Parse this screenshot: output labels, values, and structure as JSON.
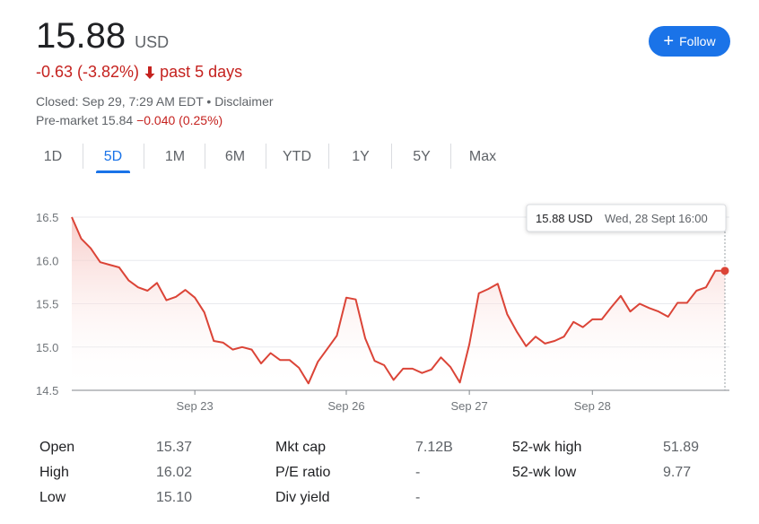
{
  "quote": {
    "price": "15.88",
    "currency": "USD",
    "change": "-0.63 (-3.82%)",
    "period": "past 5 days",
    "closed": "Closed: Sep 29, 7:29 AM EDT • Disclaimer",
    "premarket_label": "Pre-market 15.84",
    "premarket_change": "−0.040 (0.25%)"
  },
  "follow_button": {
    "label": "Follow"
  },
  "tabs": [
    {
      "label": "1D"
    },
    {
      "label": "5D"
    },
    {
      "label": "1M"
    },
    {
      "label": "6M"
    },
    {
      "label": "YTD"
    },
    {
      "label": "1Y"
    },
    {
      "label": "5Y"
    },
    {
      "label": "Max"
    }
  ],
  "active_tab": "5D",
  "colors": {
    "line": "#db4437",
    "accent": "#1a73e8",
    "negative": "#c5221f"
  },
  "tooltip": {
    "price": "15.88 USD",
    "time": "Wed, 28 Sept 16:00"
  },
  "chart_data": {
    "type": "line",
    "y_ticks": [
      "16.5",
      "16.0",
      "15.5",
      "15.0",
      "14.5"
    ],
    "ylim": [
      14.5,
      16.5
    ],
    "x_ticks": [
      "Sep 23",
      "Sep 26",
      "Sep 27",
      "Sep 28"
    ],
    "grid": true,
    "values": [
      16.5,
      16.25,
      16.14,
      15.98,
      15.95,
      15.92,
      15.77,
      15.69,
      15.65,
      15.74,
      15.54,
      15.58,
      15.66,
      15.57,
      15.4,
      15.07,
      15.05,
      14.97,
      15.0,
      14.97,
      14.81,
      14.93,
      14.85,
      14.85,
      14.76,
      14.58,
      14.83,
      14.98,
      15.13,
      15.57,
      15.55,
      15.1,
      14.84,
      14.79,
      14.62,
      14.75,
      14.75,
      14.7,
      14.74,
      14.88,
      14.77,
      14.59,
      15.03,
      15.62,
      15.67,
      15.73,
      15.38,
      15.18,
      15.01,
      15.12,
      15.04,
      15.07,
      15.12,
      15.29,
      15.23,
      15.32,
      15.32,
      15.46,
      15.59,
      15.41,
      15.5,
      15.45,
      15.41,
      15.35,
      15.51,
      15.51,
      15.65,
      15.69,
      15.88,
      15.88
    ]
  },
  "stats": [
    {
      "label": "Open",
      "value": "15.37"
    },
    {
      "label": "High",
      "value": "16.02"
    },
    {
      "label": "Low",
      "value": "15.10"
    },
    {
      "label": "Mkt cap",
      "value": "7.12B"
    },
    {
      "label": "P/E ratio",
      "value": "-"
    },
    {
      "label": "Div yield",
      "value": "-"
    },
    {
      "label": "52-wk high",
      "value": "51.89"
    },
    {
      "label": "52-wk low",
      "value": "9.77"
    }
  ]
}
